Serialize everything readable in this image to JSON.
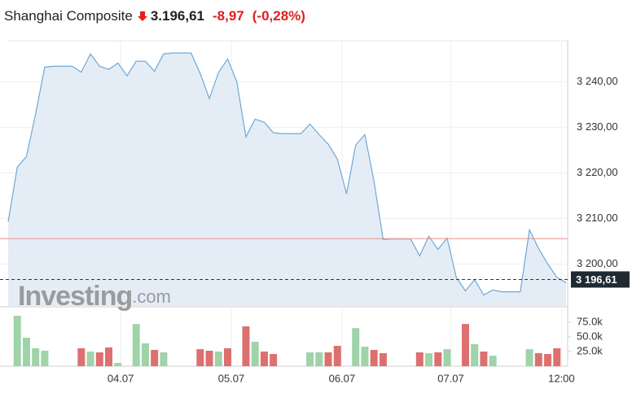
{
  "header": {
    "title": "Shanghai Composite",
    "price": "3.196,61",
    "change": "-8,97",
    "change_percent": "(-0,28%)"
  },
  "watermark": {
    "brand": "Investing",
    "suffix": ".com"
  },
  "chart_data": [
    {
      "type": "area",
      "color": "#6fa8d6",
      "fill": "#e4edf6",
      "values": [
        3209.3,
        3221.25,
        3223.6,
        3232.9,
        3243.2,
        3243.4,
        3243.4,
        3243.4,
        3242.1,
        3246.1,
        3243.4,
        3242.7,
        3244.1,
        3241.3,
        3244.5,
        3244.5,
        3242.3,
        3246.1,
        3246.3,
        3246.3,
        3246.3,
        3241.8,
        3236.3,
        3242.0,
        3245.0,
        3240.0,
        3227.9,
        3231.8,
        3231.1,
        3228.8,
        3228.6,
        3228.6,
        3228.6,
        3230.7,
        3228.4,
        3226.3,
        3223.0,
        3215.4,
        3226.1,
        3228.4,
        3218.2,
        3205.4,
        3205.5,
        3205.5,
        3205.5,
        3201.8,
        3206.1,
        3203.2,
        3205.7,
        3197.1,
        3194.1,
        3196.6,
        3193.2,
        3194.3,
        3193.9,
        3193.9,
        3193.9,
        3207.5,
        3203.4,
        3200.0,
        3197.1,
        3195.9
      ],
      "xlim": [
        0,
        61
      ],
      "xticks": [
        {
          "value": 12.3,
          "label": "04.07"
        },
        {
          "value": 24.4,
          "label": "05.07"
        },
        {
          "value": 36.5,
          "label": "06.07"
        },
        {
          "value": 48.4,
          "label": "07.07"
        },
        {
          "value": 60.5,
          "label": "12:00"
        }
      ],
      "ylim": [
        3190.8,
        3249
      ],
      "yticks": [
        {
          "value": 3200,
          "label": "3 200,00"
        },
        {
          "value": 3210,
          "label": "3 210,00"
        },
        {
          "value": 3220,
          "label": "3 220,00"
        },
        {
          "value": 3230,
          "label": "3 230,00"
        },
        {
          "value": 3240,
          "label": "3 240,00"
        }
      ],
      "previous_close": 3205.58,
      "previous_close_color": "#e8928c",
      "last": {
        "value": 3196.61,
        "label": "3 196,61"
      },
      "grid": true
    },
    {
      "type": "bar",
      "x": [
        1,
        2,
        3,
        4,
        8,
        9,
        10,
        11,
        12,
        14,
        15,
        16,
        17,
        21,
        22,
        23,
        24,
        26,
        27,
        28,
        29,
        33,
        34,
        35,
        36,
        38,
        39,
        40,
        41,
        45,
        46,
        47,
        48,
        50,
        51,
        52,
        53,
        57,
        58,
        59,
        60
      ],
      "values": [
        86000,
        48600,
        30600,
        26400,
        30600,
        25000,
        23600,
        32000,
        5600,
        72000,
        39000,
        27800,
        23600,
        29000,
        26400,
        25000,
        30600,
        68000,
        41700,
        25000,
        20800,
        23600,
        23600,
        23600,
        34700,
        65000,
        33300,
        27800,
        22200,
        23600,
        22200,
        23600,
        29000,
        72000,
        37500,
        25000,
        18000,
        29000,
        22200,
        20800,
        30600
      ],
      "colors": [
        "#9fd3a8",
        "#9fd3a8",
        "#9fd3a8",
        "#9fd3a8",
        "#de6f6f",
        "#9fd3a8",
        "#de6f6f",
        "#de6f6f",
        "#9fd3a8",
        "#9fd3a8",
        "#9fd3a8",
        "#de6f6f",
        "#9fd3a8",
        "#de6f6f",
        "#de6f6f",
        "#9fd3a8",
        "#de6f6f",
        "#de6f6f",
        "#9fd3a8",
        "#de6f6f",
        "#de6f6f",
        "#9fd3a8",
        "#9fd3a8",
        "#de6f6f",
        "#de6f6f",
        "#9fd3a8",
        "#9fd3a8",
        "#de6f6f",
        "#de6f6f",
        "#de6f6f",
        "#9fd3a8",
        "#de6f6f",
        "#9fd3a8",
        "#de6f6f",
        "#9fd3a8",
        "#de6f6f",
        "#9fd3a8",
        "#9fd3a8",
        "#de6f6f",
        "#de6f6f",
        "#de6f6f"
      ],
      "xlim": [
        0,
        61
      ],
      "ylim": [
        0,
        100000
      ],
      "yticks": [
        {
          "value": 25000,
          "label": "25.0k"
        },
        {
          "value": 50000,
          "label": "50.0k"
        },
        {
          "value": 75000,
          "label": "75.0k"
        }
      ]
    }
  ]
}
